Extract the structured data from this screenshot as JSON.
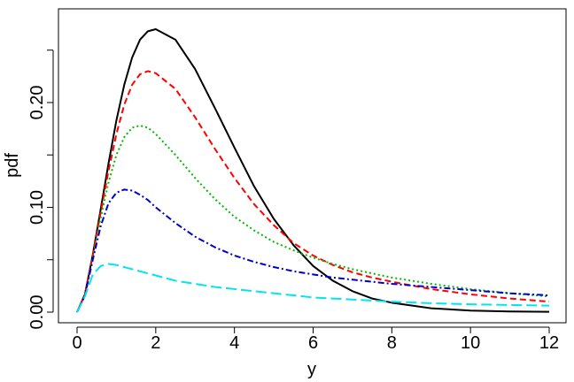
{
  "chart_data": {
    "type": "line",
    "title": "",
    "xlabel": "y",
    "ylabel": "pdf",
    "xlim": [
      0,
      12
    ],
    "ylim": [
      0,
      0.27
    ],
    "xticks": [
      0,
      2,
      4,
      6,
      8,
      10,
      12
    ],
    "xtick_labels": [
      "0",
      "2",
      "4",
      "6",
      "8",
      "10",
      "12"
    ],
    "yticks": [
      0.0,
      0.05,
      0.1,
      0.15,
      0.2,
      0.25
    ],
    "ytick_labels": [
      "0.00",
      "",
      "0.10",
      "",
      "0.20",
      ""
    ],
    "grid": false,
    "legend": "none",
    "x": [
      0,
      0.2,
      0.4,
      0.6,
      0.8,
      1.0,
      1.2,
      1.4,
      1.6,
      1.8,
      2.0,
      2.5,
      3.0,
      3.5,
      4.0,
      4.5,
      5.0,
      5.5,
      6.0,
      6.5,
      7.0,
      7.5,
      8.0,
      9.0,
      10.0,
      11.0,
      12.0
    ],
    "series": [
      {
        "color": "#000000",
        "dash": "solid",
        "values": [
          0.0,
          0.017,
          0.055,
          0.098,
          0.142,
          0.183,
          0.217,
          0.243,
          0.26,
          0.268,
          0.27,
          0.26,
          0.232,
          0.195,
          0.157,
          0.12,
          0.089,
          0.064,
          0.044,
          0.03,
          0.02,
          0.013,
          0.009,
          0.0037,
          0.0015,
          0.0006,
          0.0003
        ]
      },
      {
        "color": "#ff0000",
        "dash": "dashed",
        "values": [
          0.0,
          0.017,
          0.054,
          0.095,
          0.135,
          0.17,
          0.198,
          0.217,
          0.227,
          0.23,
          0.228,
          0.213,
          0.186,
          0.156,
          0.128,
          0.103,
          0.083,
          0.066,
          0.054,
          0.045,
          0.038,
          0.033,
          0.029,
          0.022,
          0.017,
          0.013,
          0.01
        ]
      },
      {
        "color": "#00bb00",
        "dash": "dotted",
        "values": [
          0.0,
          0.016,
          0.052,
          0.09,
          0.124,
          0.15,
          0.167,
          0.176,
          0.178,
          0.176,
          0.17,
          0.15,
          0.128,
          0.108,
          0.091,
          0.078,
          0.067,
          0.059,
          0.052,
          0.046,
          0.041,
          0.037,
          0.033,
          0.027,
          0.022,
          0.018,
          0.015
        ]
      },
      {
        "color": "#0000cc",
        "dash": "dashdot",
        "values": [
          0.0,
          0.016,
          0.05,
          0.082,
          0.104,
          0.114,
          0.117,
          0.116,
          0.112,
          0.107,
          0.1,
          0.085,
          0.072,
          0.062,
          0.054,
          0.048,
          0.043,
          0.039,
          0.036,
          0.033,
          0.031,
          0.029,
          0.027,
          0.024,
          0.021,
          0.018,
          0.016
        ]
      },
      {
        "color": "#00e5ee",
        "dash": "longdash",
        "values": [
          0.0,
          0.015,
          0.036,
          0.044,
          0.046,
          0.045,
          0.043,
          0.041,
          0.039,
          0.037,
          0.035,
          0.03,
          0.027,
          0.024,
          0.022,
          0.02,
          0.018,
          0.016,
          0.014,
          0.013,
          0.012,
          0.011,
          0.01,
          0.0085,
          0.0075,
          0.0068,
          0.0062
        ]
      }
    ]
  }
}
